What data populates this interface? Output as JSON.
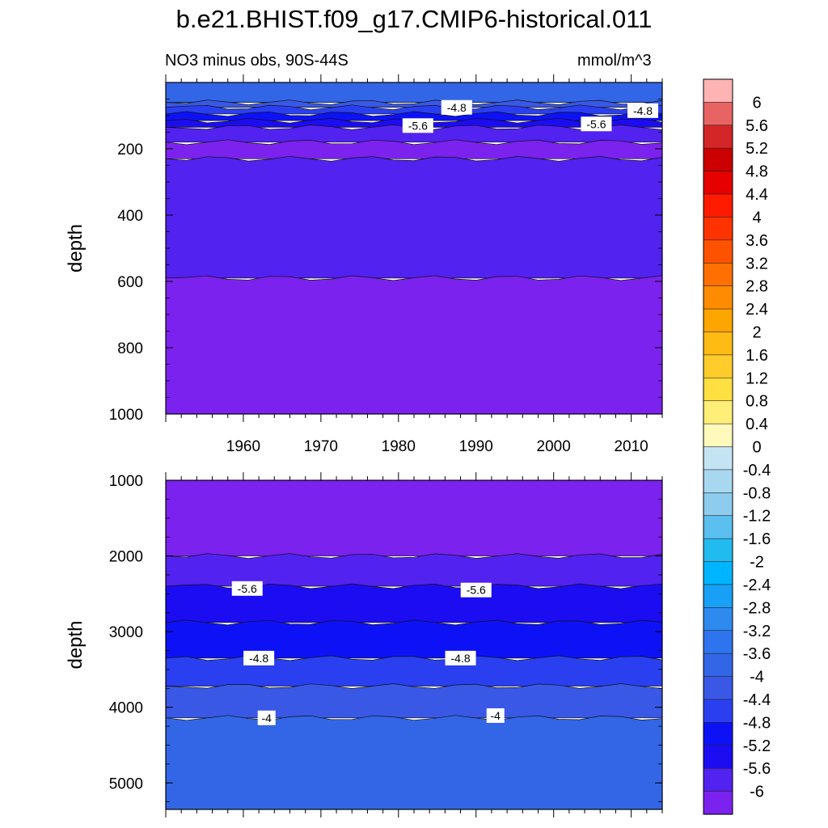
{
  "title": "b.e21.BHIST.f09_g17.CMIP6-historical.011",
  "subtitle_left": "NO3 minus obs, 90S-44S",
  "subtitle_right": "mmol/m^3",
  "chart_data": {
    "type": "contour",
    "variable": "NO3 minus obs",
    "units": "mmol/m^3",
    "x_range": [
      1950,
      2014
    ],
    "x_ticks": [
      1960,
      1970,
      1980,
      1990,
      2000,
      2010
    ],
    "panels": [
      {
        "name": "upper",
        "ylabel": "depth",
        "ylim": [
          1000,
          0
        ],
        "y_ticks": [
          200,
          400,
          600,
          800,
          1000
        ],
        "y_range_top": 0,
        "y_range_bottom": 1000,
        "bands": [
          {
            "top": 0,
            "bottom": 60,
            "value": -4.0
          },
          {
            "top": 60,
            "bottom": 75,
            "value": -4.4
          },
          {
            "top": 75,
            "bottom": 95,
            "value": -4.8
          },
          {
            "top": 95,
            "bottom": 115,
            "value": -5.2
          },
          {
            "top": 115,
            "bottom": 135,
            "value": -5.6
          },
          {
            "top": 135,
            "bottom": 180,
            "value": -6.0
          },
          {
            "top": 180,
            "bottom": 230,
            "value": -6.4
          },
          {
            "top": 230,
            "bottom": 590,
            "value": -6.0
          },
          {
            "top": 590,
            "bottom": 1000,
            "value": -6.4
          }
        ],
        "contour_labels": [
          {
            "text": "-4.8",
            "year": 1987.5,
            "depth": 75
          },
          {
            "text": "-4.8",
            "year": 2011.5,
            "depth": 85
          },
          {
            "text": "-5.6",
            "year": 1982.5,
            "depth": 130
          },
          {
            "text": "-5.6",
            "year": 2005.5,
            "depth": 125
          }
        ]
      },
      {
        "name": "lower",
        "ylabel": "depth",
        "ylim": [
          5350,
          1000
        ],
        "y_ticks": [
          1000,
          2000,
          3000,
          4000,
          5000
        ],
        "y_range_top": 1000,
        "y_range_bottom": 5350,
        "bands": [
          {
            "top": 1000,
            "bottom": 2000,
            "value": -6.4
          },
          {
            "top": 2000,
            "bottom": 2400,
            "value": -6.0
          },
          {
            "top": 2400,
            "bottom": 2880,
            "value": -5.6
          },
          {
            "top": 2880,
            "bottom": 3350,
            "value": -5.2
          },
          {
            "top": 3350,
            "bottom": 3720,
            "value": -4.8
          },
          {
            "top": 3720,
            "bottom": 4140,
            "value": -4.4
          },
          {
            "top": 4140,
            "bottom": 5350,
            "value": -4.0
          }
        ],
        "contour_labels": [
          {
            "text": "-5.6",
            "year": 1960.5,
            "depth": 2430
          },
          {
            "text": "-5.6",
            "year": 1990,
            "depth": 2450
          },
          {
            "text": "-4.8",
            "year": 1962,
            "depth": 3350
          },
          {
            "text": "-4.8",
            "year": 1988,
            "depth": 3350
          },
          {
            "text": "-4",
            "year": 1963,
            "depth": 4140
          },
          {
            "text": "-4",
            "year": 1992.5,
            "depth": 4110
          }
        ]
      }
    ],
    "colorbar": {
      "levels": [
        6,
        5.6,
        5.2,
        4.8,
        4.4,
        4,
        3.6,
        3.2,
        2.8,
        2.4,
        2,
        1.6,
        1.2,
        0.8,
        0.4,
        0,
        -0.4,
        -0.8,
        -1.2,
        -1.6,
        -2,
        -2.4,
        -2.8,
        -3.2,
        -3.6,
        -4,
        -4.4,
        -4.8,
        -5.2,
        -5.6,
        -6
      ],
      "level_labels": [
        "6",
        "5.6",
        "5.2",
        "4.8",
        "4.4",
        "4",
        "3.6",
        "3.2",
        "2.8",
        "2.4",
        "2",
        "1.6",
        "1.2",
        "0.8",
        "0.4",
        "0",
        "-0.4",
        "-0.8",
        "-1.2",
        "-1.6",
        "-2",
        "-2.4",
        "-2.8",
        "-3.2",
        "-3.6",
        "-4",
        "-4.4",
        "-4.8",
        "-5.2",
        "-5.6",
        "-6"
      ],
      "colors": [
        "#ffb3b3",
        "#e86464",
        "#d42626",
        "#cc0000",
        "#e60000",
        "#ff1a00",
        "#ff3300",
        "#ff5200",
        "#ff7000",
        "#ff8c00",
        "#ffa500",
        "#ffbb14",
        "#ffcc2b",
        "#ffe040",
        "#ffee77",
        "#fff9bb",
        "#c4e4f4",
        "#a8d8f0",
        "#8dccee",
        "#5bbfef",
        "#22bbf0",
        "#00b5ff",
        "#17a0f5",
        "#2f8af0",
        "#2e74ee",
        "#3366e6",
        "#3a58e6",
        "#2a40f0",
        "#0d12f6",
        "#1c0cf2",
        "#5222f0",
        "#7b22ee"
      ]
    }
  }
}
